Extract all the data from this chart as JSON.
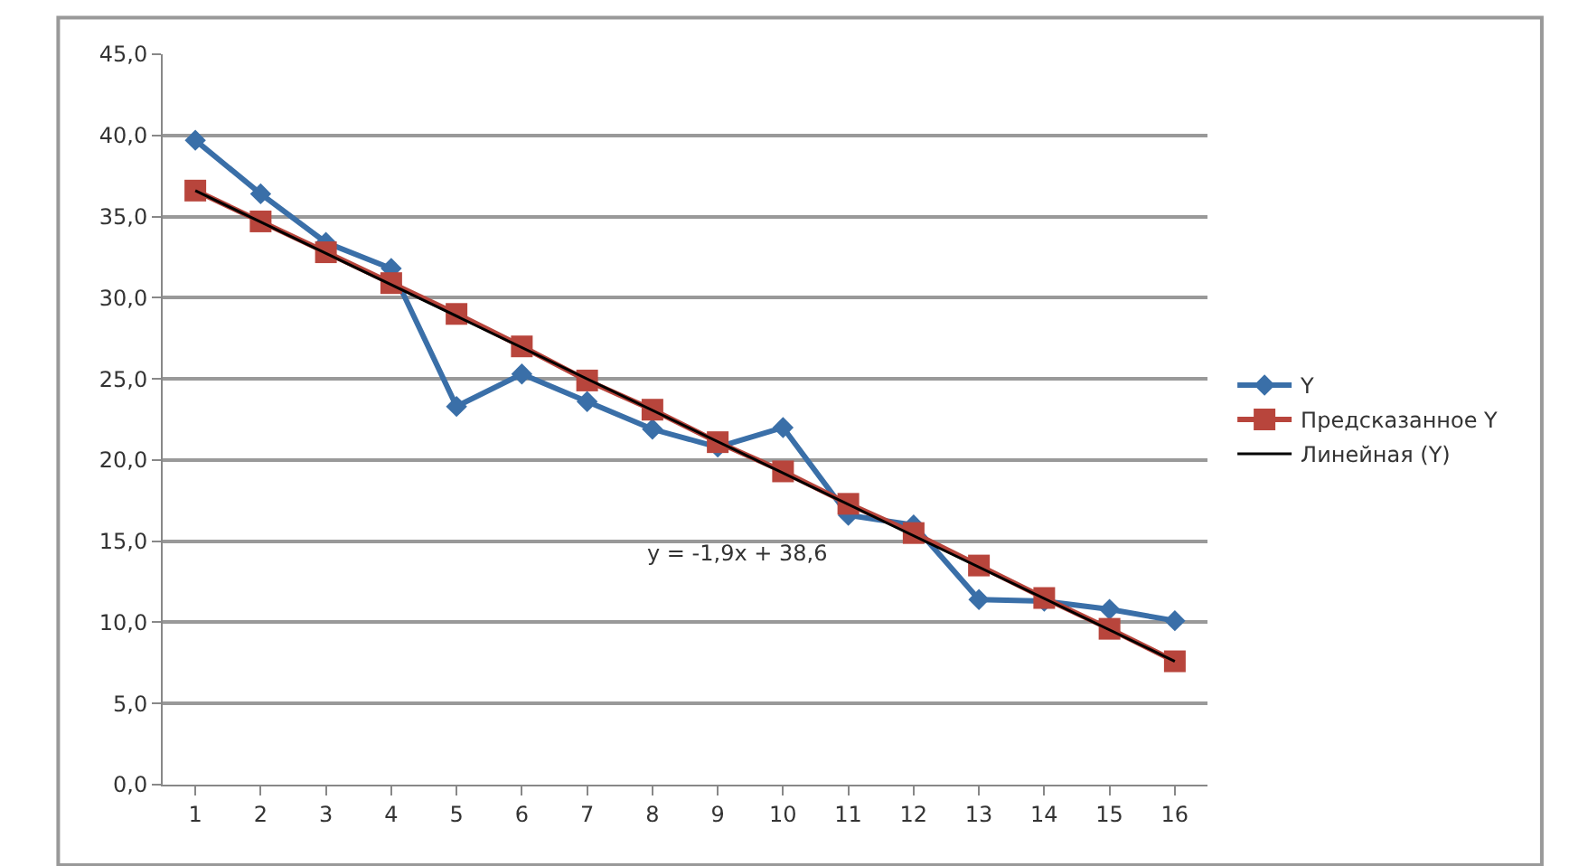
{
  "chart_data": {
    "type": "line",
    "x": [
      1,
      2,
      3,
      4,
      5,
      6,
      7,
      8,
      9,
      10,
      11,
      12,
      13,
      14,
      15,
      16
    ],
    "series": [
      {
        "name": "Y",
        "color": "#3a6fa8",
        "marker": "diamond",
        "values": [
          39.7,
          36.4,
          33.4,
          31.8,
          23.3,
          25.3,
          23.6,
          21.9,
          20.8,
          22.0,
          16.6,
          16.0,
          11.4,
          11.3,
          10.8,
          10.1
        ]
      },
      {
        "name": "Предсказанное Y",
        "color": "#b8453c",
        "marker": "square",
        "values": [
          36.6,
          34.7,
          32.8,
          30.9,
          29.0,
          27.0,
          24.9,
          23.1,
          21.1,
          19.3,
          17.3,
          15.5,
          13.5,
          11.5,
          9.6,
          7.6
        ]
      },
      {
        "name": "Линейная (Y)",
        "type": "line",
        "color": "#000000",
        "marker": "none",
        "x": [
          1,
          16
        ],
        "values": [
          36.6,
          7.6
        ]
      }
    ],
    "xlim": [
      0.5,
      16.5
    ],
    "xticks": [
      1,
      2,
      3,
      4,
      5,
      6,
      7,
      8,
      9,
      10,
      11,
      12,
      13,
      14,
      15,
      16
    ],
    "ylim": [
      0,
      45
    ],
    "yticks": [
      {
        "value": 0,
        "label": "0,0"
      },
      {
        "value": 5,
        "label": "5,0"
      },
      {
        "value": 10,
        "label": "10,0"
      },
      {
        "value": 15,
        "label": "15,0"
      },
      {
        "value": 20,
        "label": "20,0"
      },
      {
        "value": 25,
        "label": "25,0"
      },
      {
        "value": 30,
        "label": "30,0"
      },
      {
        "value": 35,
        "label": "35,0"
      },
      {
        "value": 40,
        "label": "40,0"
      },
      {
        "value": 45,
        "label": "45,0"
      }
    ],
    "grid": "y",
    "legend": "right",
    "line_style": "solid",
    "annotations": [
      "y = -1,9x + 38,6"
    ]
  }
}
